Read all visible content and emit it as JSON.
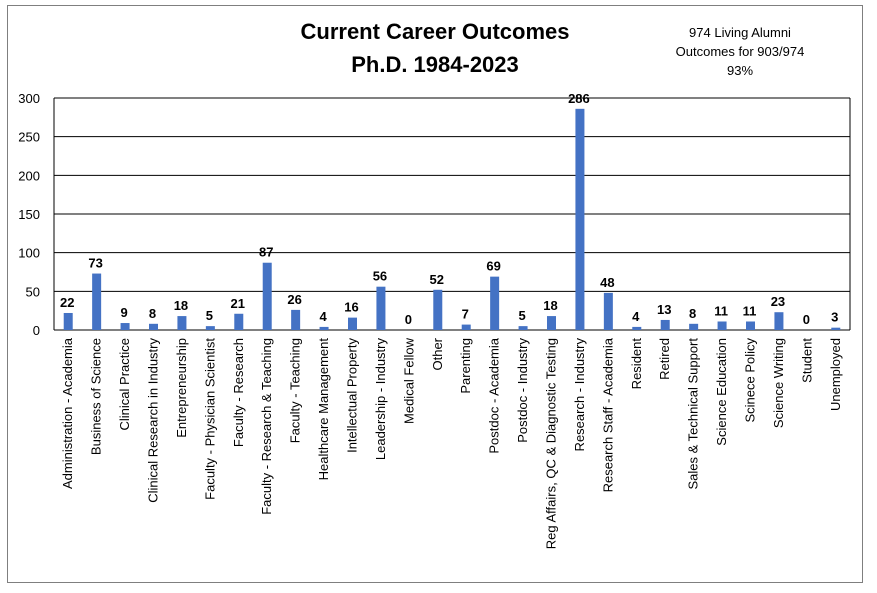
{
  "chart_data": {
    "type": "bar",
    "title": "Current Career Outcomes",
    "subtitle": "Ph.D. 1984-2023",
    "annotations": [
      "974 Living Alumni",
      "Outcomes for 903/974",
      "93%"
    ],
    "xlabel": "",
    "ylabel": "",
    "ylim": [
      0,
      300
    ],
    "yticks": [
      0,
      50,
      100,
      150,
      200,
      250,
      300
    ],
    "grid": true,
    "legend": "none",
    "bar_color": "#4472c4",
    "categories": [
      "Administration - Academia",
      "Business of Science",
      "Clinical Practice",
      "Clinical Research in Industry",
      "Entrepreneurship",
      "Faculty - Physician Scientist",
      "Faculty - Research",
      "Faculty - Research & Teaching",
      "Faculty - Teaching",
      "Healthcare Management",
      "Intellectual Property",
      "Leadership - Industry",
      "Medical Fellow",
      "Other",
      "Parenting",
      "Postdoc - Academia",
      "Postdoc - Industry",
      "Reg Affairs, QC & Diagnostic Testing",
      "Research - Industry",
      "Research Staff - Academia",
      "Resident",
      "Retired",
      "Sales & Technical Support",
      "Science Education",
      "Scinece Policy",
      "Science Writing",
      "Student",
      "Unemployed"
    ],
    "values": [
      22,
      73,
      9,
      8,
      18,
      5,
      21,
      87,
      26,
      4,
      16,
      56,
      0,
      52,
      7,
      69,
      5,
      18,
      286,
      48,
      4,
      13,
      8,
      11,
      11,
      23,
      0,
      3
    ]
  }
}
